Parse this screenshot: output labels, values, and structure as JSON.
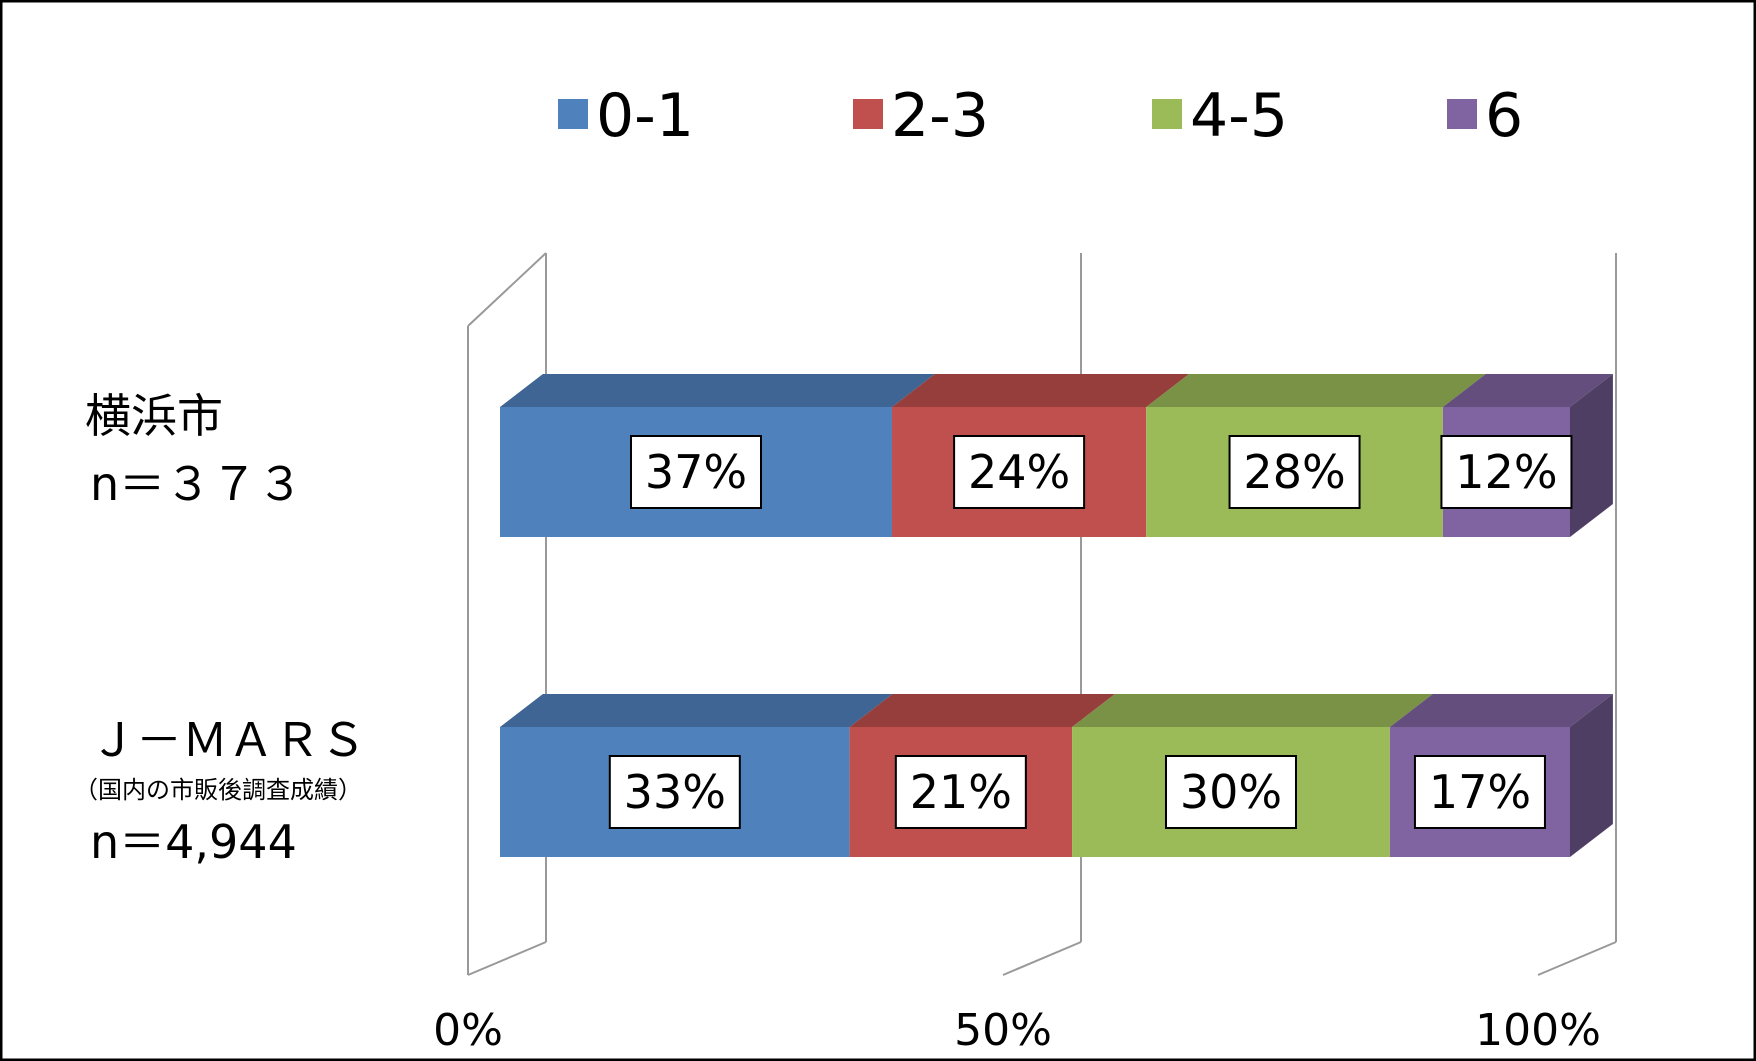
{
  "chart_data": {
    "type": "bar",
    "orientation": "horizontal",
    "stacked": "percent",
    "style": "3d",
    "categories": [
      {
        "lines": [
          "横浜市",
          "n＝３７３"
        ]
      },
      {
        "lines": [
          "Ｊ－ＭＡＲＳ",
          "（国内の市販後調査成績）",
          "n＝4,944"
        ]
      }
    ],
    "series": [
      {
        "name": "0-1",
        "color": "#4f81bd",
        "values": [
          37,
          33
        ],
        "labels": [
          "37%",
          "33%"
        ]
      },
      {
        "name": "2-3",
        "color": "#c0504d",
        "values": [
          24,
          21
        ],
        "labels": [
          "24%",
          "21%"
        ]
      },
      {
        "name": "4-5",
        "color": "#9bbb59",
        "values": [
          28,
          30
        ],
        "labels": [
          "28%",
          "30%"
        ]
      },
      {
        "name": "6",
        "color": "#8064a2",
        "values": [
          12,
          17
        ],
        "labels": [
          "12%",
          "17%"
        ]
      }
    ],
    "xaxis": {
      "ticks": [
        "0%",
        "50%",
        "100%"
      ],
      "range": [
        0,
        100
      ]
    },
    "legend": "top",
    "grid": true
  }
}
